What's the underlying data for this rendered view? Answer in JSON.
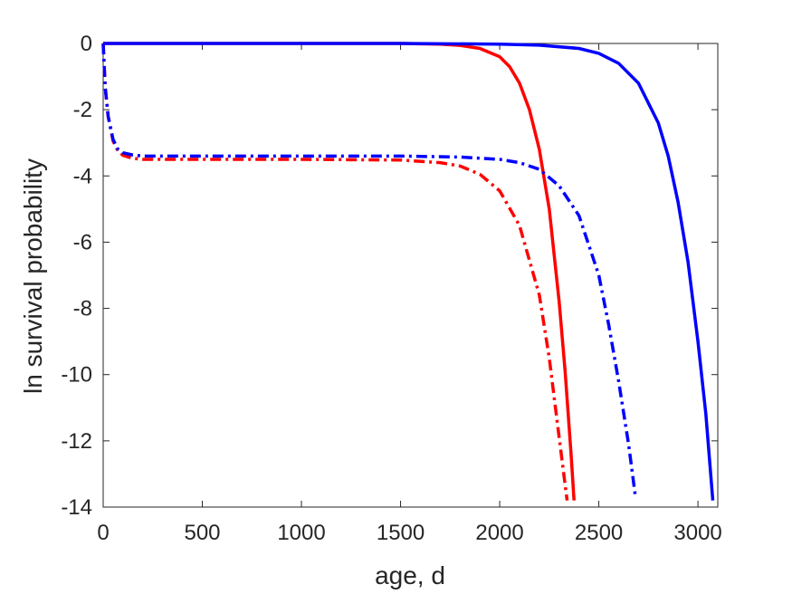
{
  "chart_data": {
    "type": "line",
    "xlabel": "age, d",
    "ylabel": "ln survival probability",
    "xlim": [
      0,
      3100
    ],
    "ylim": [
      -14,
      0
    ],
    "xticks": [
      0,
      500,
      1000,
      1500,
      2000,
      2500,
      3000
    ],
    "yticks": [
      0,
      -2,
      -4,
      -6,
      -8,
      -10,
      -12,
      -14
    ],
    "grid": false,
    "legend": "none",
    "series": [
      {
        "color": "#ff0000",
        "style": "solid",
        "x": [
          0,
          500,
          1000,
          1500,
          1700,
          1800,
          1900,
          2000,
          2050,
          2100,
          2150,
          2200,
          2250,
          2300,
          2330,
          2360,
          2375
        ],
        "y": [
          0,
          0,
          0,
          0,
          -0.02,
          -0.06,
          -0.15,
          -0.4,
          -0.7,
          -1.2,
          -2.0,
          -3.2,
          -5.0,
          -7.8,
          -9.9,
          -12.4,
          -13.8
        ]
      },
      {
        "color": "#0000ff",
        "style": "solid",
        "x": [
          0,
          500,
          1000,
          1500,
          2000,
          2200,
          2400,
          2500,
          2600,
          2700,
          2800,
          2850,
          2900,
          2950,
          3000,
          3040,
          3075
        ],
        "y": [
          0,
          0,
          0,
          0,
          -0.02,
          -0.05,
          -0.15,
          -0.3,
          -0.6,
          -1.2,
          -2.4,
          -3.4,
          -4.8,
          -6.6,
          -9.0,
          -11.2,
          -13.8
        ]
      },
      {
        "color": "#ff0000",
        "style": "dashdot",
        "x": [
          0,
          10,
          25,
          50,
          75,
          100,
          150,
          200,
          500,
          1000,
          1500,
          1700,
          1800,
          1900,
          2000,
          2100,
          2200,
          2250,
          2300,
          2340
        ],
        "y": [
          0,
          -1.3,
          -2.2,
          -2.95,
          -3.25,
          -3.38,
          -3.47,
          -3.5,
          -3.5,
          -3.5,
          -3.52,
          -3.6,
          -3.7,
          -3.95,
          -4.45,
          -5.5,
          -7.6,
          -9.5,
          -11.9,
          -13.8
        ]
      },
      {
        "color": "#0000ff",
        "style": "dashdot",
        "x": [
          0,
          10,
          25,
          50,
          75,
          100,
          150,
          200,
          500,
          1000,
          1500,
          1800,
          2000,
          2100,
          2200,
          2300,
          2400,
          2500,
          2550,
          2600,
          2650,
          2685
        ],
        "y": [
          0,
          -1.3,
          -2.2,
          -2.9,
          -3.2,
          -3.3,
          -3.37,
          -3.4,
          -3.4,
          -3.4,
          -3.4,
          -3.43,
          -3.5,
          -3.6,
          -3.8,
          -4.3,
          -5.2,
          -7.0,
          -8.5,
          -10.2,
          -12.1,
          -13.7
        ]
      }
    ]
  }
}
